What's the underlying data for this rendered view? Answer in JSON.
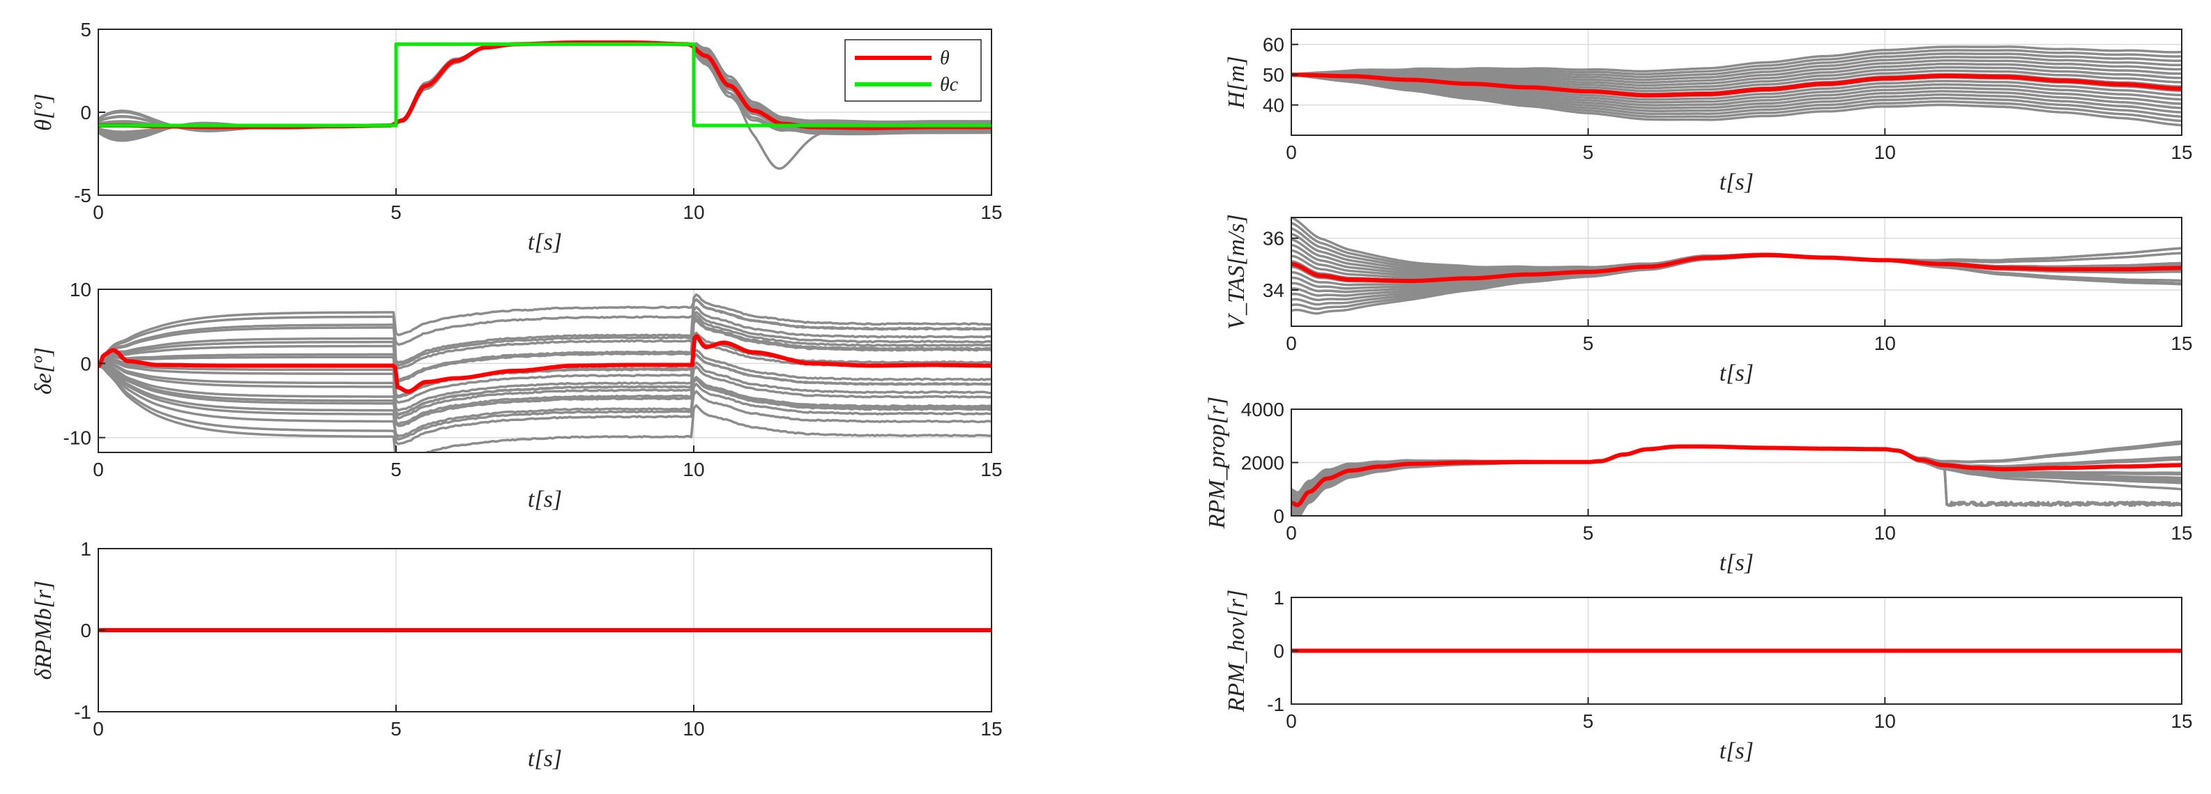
{
  "chart_data": [
    {
      "id": "theta",
      "type": "line",
      "xlabel": "t[s]",
      "ylabel": "θ[º]",
      "xlim": [
        0,
        15
      ],
      "ylim": [
        -5,
        5
      ],
      "xticks": [
        "0",
        "5",
        "10",
        "15"
      ],
      "yticks": [
        "-5",
        "0",
        "5"
      ],
      "series": [
        {
          "name": "θ",
          "color": "#ff0000",
          "x": [
            0,
            0.5,
            1,
            2,
            3,
            4,
            4.9,
            5.1,
            5.5,
            6,
            6.5,
            7,
            8,
            9,
            9.9,
            10.2,
            10.6,
            11,
            11.5,
            12,
            13,
            14,
            15
          ],
          "y": [
            -0.8,
            -0.8,
            -0.85,
            -0.9,
            -0.9,
            -0.85,
            -0.8,
            -0.5,
            1.6,
            3.1,
            3.9,
            4.1,
            4.2,
            4.2,
            4.1,
            3.4,
            1.6,
            0.1,
            -0.7,
            -0.9,
            -0.95,
            -0.9,
            -0.9
          ]
        },
        {
          "name": "θ_c",
          "color": "#00ee00",
          "x": [
            0,
            5,
            5,
            10,
            10,
            15
          ],
          "y": [
            -0.8,
            -0.8,
            4.1,
            4.1,
            -0.8,
            -0.8
          ]
        }
      ],
      "legend": {
        "position": "top-right",
        "entries": [
          "θ",
          "θc"
        ]
      }
    },
    {
      "id": "delta_e",
      "type": "line",
      "xlabel": "t[s]",
      "ylabel": "δe[º]",
      "xlim": [
        0,
        15
      ],
      "ylim": [
        -12,
        10
      ],
      "xticks": [
        "0",
        "5",
        "10",
        "15"
      ],
      "yticks": [
        "-10",
        "0",
        "10"
      ],
      "series": [
        {
          "name": "δe",
          "color": "#ff0000",
          "x": [
            0,
            0.1,
            0.25,
            0.5,
            1,
            2,
            4,
            4.98,
            5.02,
            5.2,
            5.5,
            6,
            7,
            8,
            9,
            9.98,
            10.02,
            10.2,
            10.5,
            11,
            12,
            13,
            14,
            15
          ],
          "y": [
            -0.5,
            1.2,
            1.8,
            0.3,
            -0.2,
            -0.3,
            -0.3,
            -0.3,
            -3.2,
            -3.8,
            -2.5,
            -2,
            -1,
            -0.3,
            -0.2,
            -0.2,
            3.8,
            2.2,
            2.8,
            1.5,
            0,
            -0.3,
            -0.2,
            -0.3
          ]
        }
      ]
    },
    {
      "id": "delta_rpm_b",
      "type": "line",
      "xlabel": "t[s]",
      "ylabel": "δRPMb[r]",
      "xlim": [
        0,
        15
      ],
      "ylim": [
        -1,
        1
      ],
      "xticks": [
        "0",
        "5",
        "10",
        "15"
      ],
      "yticks": [
        "-1",
        "0",
        "1"
      ],
      "series": [
        {
          "name": "δRPMb",
          "color": "#ff0000",
          "x": [
            0,
            15
          ],
          "y": [
            0,
            0
          ]
        }
      ]
    },
    {
      "id": "H",
      "type": "line",
      "xlabel": "t[s]",
      "ylabel": "H[m]",
      "xlim": [
        0,
        15
      ],
      "ylim": [
        30,
        65
      ],
      "xticks": [
        "0",
        "5",
        "10",
        "15"
      ],
      "yticks": [
        "40",
        "50",
        "60"
      ],
      "series": [
        {
          "name": "H",
          "color": "#ff0000",
          "x": [
            0,
            1,
            2,
            3,
            4,
            5,
            6,
            7,
            8,
            9,
            10,
            11,
            12,
            13,
            14,
            15
          ],
          "y": [
            50,
            49.5,
            48.3,
            47,
            45.8,
            44.5,
            43.2,
            43.6,
            45.2,
            47,
            48.8,
            49.6,
            49.3,
            48,
            46.8,
            45.4
          ]
        }
      ]
    },
    {
      "id": "V_TAS",
      "type": "line",
      "xlabel": "t[s]",
      "ylabel": "V_TAS[m/s]",
      "xlim": [
        0,
        15
      ],
      "ylim": [
        32.6,
        36.8
      ],
      "xticks": [
        "0",
        "5",
        "10",
        "15"
      ],
      "yticks": [
        "34",
        "36"
      ],
      "series": [
        {
          "name": "V_TAS",
          "color": "#ff0000",
          "x": [
            0,
            0.5,
            1,
            2,
            3,
            4,
            5,
            6,
            7,
            8,
            9,
            10,
            11,
            12,
            13,
            14,
            15
          ],
          "y": [
            35.0,
            34.55,
            34.4,
            34.35,
            34.45,
            34.6,
            34.7,
            34.9,
            35.25,
            35.35,
            35.25,
            35.15,
            35.0,
            34.85,
            34.8,
            34.8,
            34.85
          ]
        }
      ]
    },
    {
      "id": "RPM_prop",
      "type": "line",
      "xlabel": "t[s]",
      "ylabel": "RPM_prop[r]",
      "xlim": [
        0,
        15
      ],
      "ylim": [
        0,
        4000
      ],
      "xticks": [
        "0",
        "5",
        "10",
        "15"
      ],
      "yticks": [
        "0",
        "2000",
        "4000"
      ],
      "series": [
        {
          "name": "RPM_prop",
          "color": "#ff0000",
          "x": [
            0,
            0.1,
            0.3,
            0.6,
            1,
            1.5,
            2,
            3,
            4,
            5,
            5.2,
            5.6,
            6,
            6.5,
            7,
            8,
            9,
            10,
            10.2,
            10.6,
            11,
            11.5,
            12,
            13,
            14,
            15
          ],
          "y": [
            500,
            400,
            900,
            1400,
            1700,
            1850,
            1950,
            2000,
            2020,
            2020,
            2050,
            2300,
            2500,
            2600,
            2600,
            2550,
            2520,
            2500,
            2450,
            2100,
            1900,
            1800,
            1750,
            1800,
            1850,
            1900
          ]
        }
      ]
    },
    {
      "id": "RPM_hov",
      "type": "line",
      "xlabel": "t[s]",
      "ylabel": "RPM_hov[r]",
      "xlim": [
        0,
        15
      ],
      "ylim": [
        -1,
        1
      ],
      "xticks": [
        "0",
        "5",
        "10",
        "15"
      ],
      "yticks": [
        "-1",
        "0",
        "1"
      ],
      "series": [
        {
          "name": "RPM_hov",
          "color": "#ff0000",
          "x": [
            0,
            15
          ],
          "y": [
            0,
            0
          ]
        }
      ]
    }
  ]
}
